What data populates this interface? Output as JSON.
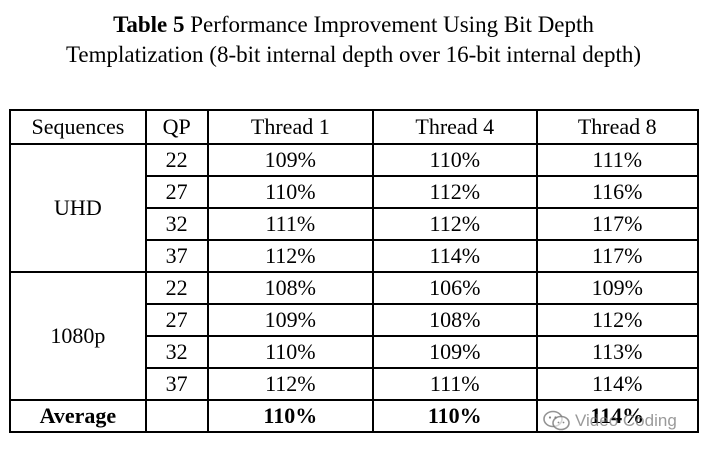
{
  "caption": {
    "label": "Table 5",
    "line1": "Performance Improvement Using Bit Depth",
    "line2": "Templatization (8-bit internal depth over 16-bit internal depth)"
  },
  "table": {
    "headers": [
      "Sequences",
      "QP",
      "Thread 1",
      "Thread 4",
      "Thread 8"
    ],
    "groups": [
      {
        "sequence": "UHD",
        "rows": [
          {
            "qp": "22",
            "t1": "109%",
            "t4": "110%",
            "t8": "111%"
          },
          {
            "qp": "27",
            "t1": "110%",
            "t4": "112%",
            "t8": "116%"
          },
          {
            "qp": "32",
            "t1": "111%",
            "t4": "112%",
            "t8": "117%"
          },
          {
            "qp": "37",
            "t1": "112%",
            "t4": "114%",
            "t8": "117%"
          }
        ]
      },
      {
        "sequence": "1080p",
        "rows": [
          {
            "qp": "22",
            "t1": "108%",
            "t4": "106%",
            "t8": "109%"
          },
          {
            "qp": "27",
            "t1": "109%",
            "t4": "108%",
            "t8": "112%"
          },
          {
            "qp": "32",
            "t1": "110%",
            "t4": "109%",
            "t8": "113%"
          },
          {
            "qp": "37",
            "t1": "112%",
            "t4": "111%",
            "t8": "114%"
          }
        ]
      }
    ],
    "average": {
      "label": "Average",
      "qp": "",
      "t1": "110%",
      "t4": "110%",
      "t8": "114%"
    }
  },
  "watermark": {
    "icon": "wechat-icon",
    "text": "Video Coding"
  }
}
